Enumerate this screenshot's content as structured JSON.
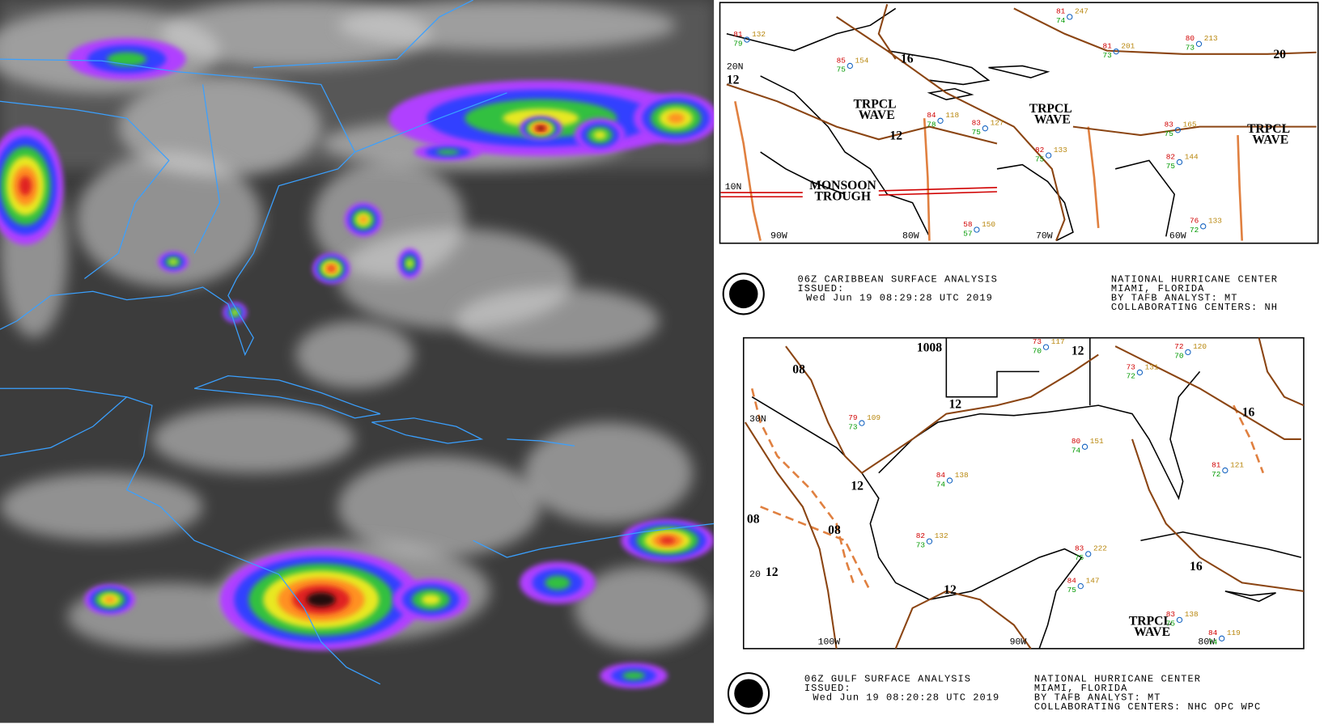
{
  "caribbean_map": {
    "lat_labels": [
      "20N",
      "10N"
    ],
    "lon_labels": [
      "90W",
      "80W",
      "70W",
      "60W"
    ],
    "isobars": [
      "16",
      "12",
      "20",
      "12"
    ],
    "features": [
      [
        "TRPCL",
        "WAVE"
      ],
      [
        "TRPCL",
        "WAVE"
      ],
      [
        "TRPCL",
        "WAVE"
      ],
      [
        "MONSOON",
        "TROUGH"
      ]
    ],
    "stations": [
      [
        "81",
        "74",
        "247"
      ],
      [
        "81",
        "73",
        "201"
      ],
      [
        "80",
        "73",
        "213"
      ],
      [
        "85",
        "75",
        "154"
      ],
      [
        "83",
        "75",
        "127"
      ],
      [
        "84",
        "78",
        "118"
      ],
      [
        "82",
        "75",
        "133"
      ],
      [
        "83",
        "75",
        "165"
      ],
      [
        "82",
        "75",
        "144"
      ],
      [
        "76",
        "72",
        "133"
      ],
      [
        "58",
        "57",
        "150"
      ],
      [
        "81",
        "79",
        "132"
      ]
    ]
  },
  "caribbean_caption": {
    "logo": "NOAA",
    "title": "06Z CARIBBEAN SURFACE ANALYSIS",
    "issued": "ISSUED:",
    "time": "Wed Jun 19 08:29:28 UTC 2019",
    "center": "NATIONAL HURRICANE CENTER",
    "location": "MIAMI, FLORIDA",
    "analyst": "BY TAFB ANALYST: MT",
    "collab": "COLLABORATING CENTERS: NH"
  },
  "gulf_map": {
    "lat_labels": [
      "30N",
      "20"
    ],
    "lon_labels": [
      "100W",
      "90W",
      "80W"
    ],
    "isobars": [
      "1008",
      "12",
      "16",
      "12",
      "12",
      "08",
      "08",
      "08",
      "12",
      "12",
      "16"
    ],
    "features": [
      [
        "TRPCL",
        "WAVE"
      ]
    ],
    "stations": [
      [
        "73",
        "70",
        "117"
      ],
      [
        "72",
        "70",
        "120"
      ],
      [
        "73",
        "72",
        "131"
      ],
      [
        "79",
        "73",
        "109"
      ],
      [
        "84",
        "74",
        "138"
      ],
      [
        "80",
        "74",
        "151"
      ],
      [
        "81",
        "72",
        "121"
      ],
      [
        "82",
        "73",
        "132"
      ],
      [
        "83",
        "75",
        "222"
      ],
      [
        "84",
        "75",
        "147"
      ],
      [
        "83",
        "75",
        "138"
      ],
      [
        "84",
        "74",
        "119"
      ]
    ]
  },
  "gulf_caption": {
    "logo": "NOAA",
    "title": "06Z GULF SURFACE ANALYSIS",
    "issued": "ISSUED:",
    "time": "Wed Jun 19 08:20:28 UTC 2019",
    "center": "NATIONAL HURRICANE CENTER",
    "location": "MIAMI, FLORIDA",
    "analyst": "BY TAFB ANALYST: MT",
    "collab": "COLLABORATING CENTERS: NHC OPC WPC"
  }
}
